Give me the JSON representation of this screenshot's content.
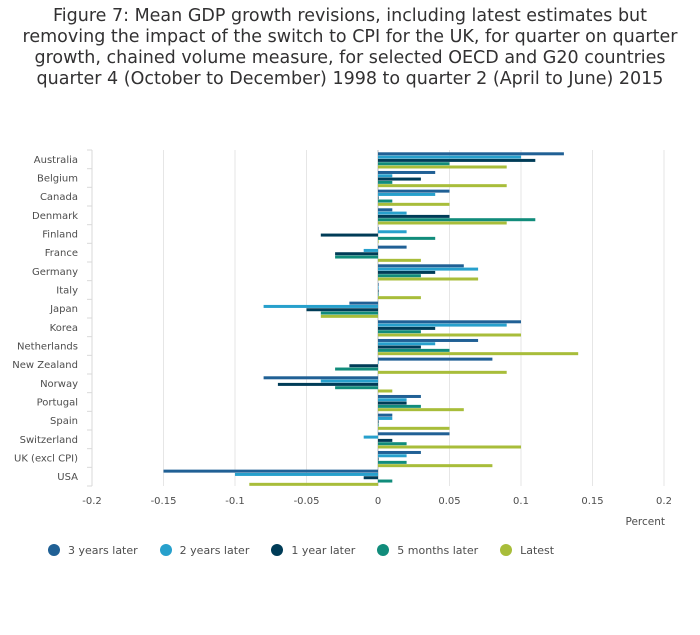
{
  "title_lines": [
    "Figure 7: Mean GDP growth revisions, including latest estimates but",
    "removing the impact of the switch to CPI for the UK, for quarter on quarter",
    "growth, chained volume measure, for selected OECD and G20 countries",
    "quarter 4 (October to December) 1998 to quarter 2 (April to June) 2015"
  ],
  "chart_data": {
    "type": "bar",
    "orientation": "horizontal",
    "title": "Figure 7: Mean GDP growth revisions, including latest estimates but removing the impact of the switch to CPI for the UK, for quarter on quarter growth, chained volume measure, for selected OECD and G20 countries quarter 4 (October to December) 1998 to quarter 2 (April to June) 2015",
    "xlabel": "Percent",
    "ylabel": "",
    "xlim": [
      -0.2,
      0.2
    ],
    "xticks": [
      -0.2,
      -0.15,
      -0.1,
      -0.05,
      0,
      0.05,
      0.1,
      0.15,
      0.2
    ],
    "xtick_labels": [
      "-0.2",
      "-0.15",
      "-0.1",
      "-0.05",
      "0",
      "0.05",
      "0.1",
      "0.15",
      "0.2"
    ],
    "grid": true,
    "legend_position": "bottom",
    "categories": [
      "Australia",
      "Belgium",
      "Canada",
      "Denmark",
      "Finland",
      "France",
      "Germany",
      "Italy",
      "Japan",
      "Korea",
      "Netherlands",
      "New Zealand",
      "Norway",
      "Portugal",
      "Spain",
      "Switzerland",
      "UK (excl CPI)",
      "USA"
    ],
    "series": [
      {
        "name": "3 years later",
        "color": "#206095",
        "values": [
          0.13,
          0.04,
          0.05,
          0.01,
          0,
          0.02,
          0.06,
          0,
          -0.02,
          0.1,
          0.07,
          0.08,
          -0.08,
          0.03,
          0.01,
          0.05,
          0.03,
          -0.15
        ]
      },
      {
        "name": "2 years later",
        "color": "#27a0cc",
        "values": [
          0.1,
          0.01,
          0.04,
          0.02,
          0.02,
          -0.01,
          0.07,
          0,
          -0.08,
          0.09,
          0.04,
          0,
          -0.04,
          0.02,
          0.01,
          -0.01,
          0.02,
          -0.1
        ]
      },
      {
        "name": "1 year later",
        "color": "#003c57",
        "values": [
          0.11,
          0.03,
          0,
          0.05,
          -0.04,
          -0.03,
          0.04,
          0,
          -0.05,
          0.04,
          0.03,
          -0.02,
          -0.07,
          0.02,
          0,
          0.01,
          0,
          -0.01
        ]
      },
      {
        "name": "5 months later",
        "color": "#118c7b",
        "values": [
          0.05,
          0.01,
          0.01,
          0.11,
          0.04,
          -0.03,
          0.03,
          0,
          -0.04,
          0.03,
          0.05,
          -0.03,
          -0.03,
          0.03,
          0,
          0.02,
          0.02,
          0.01
        ]
      },
      {
        "name": "Latest",
        "color": "#a8bd3a",
        "values": [
          0.09,
          0.09,
          0.05,
          0.09,
          0,
          0.03,
          0.07,
          0.03,
          -0.04,
          0.1,
          0.14,
          0.09,
          0.01,
          0.06,
          0.05,
          0.1,
          0.08,
          -0.09
        ]
      }
    ]
  }
}
